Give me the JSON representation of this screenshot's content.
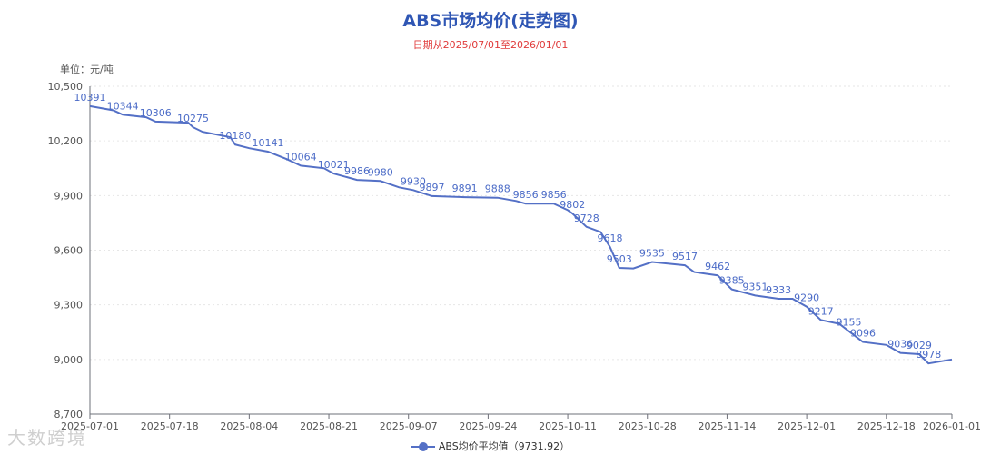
{
  "chart_data": {
    "type": "line",
    "title": "ABS市场均价(走势图)",
    "subtitle": "日期从2025/07/01至2026/01/01",
    "unit_label": "单位：元/吨",
    "y_ticks": [
      "8,700",
      "9,000",
      "9,300",
      "9,600",
      "9,900",
      "10,200",
      "10,500"
    ],
    "x_ticks": [
      "2025-07-01",
      "2025-07-18",
      "2025-08-04",
      "2025-08-21",
      "2025-09-07",
      "2025-09-24",
      "2025-10-11",
      "2025-10-28",
      "2025-11-14",
      "2025-12-01",
      "2025-12-18",
      "2026-01-01"
    ],
    "ylim": [
      8700,
      10500
    ],
    "grid": true,
    "legend_position": "bottom",
    "series": [
      {
        "name": "ABS均价平均值（9731.92）",
        "color": "#5470c6",
        "points": [
          [
            "2025-07-01",
            10391
          ],
          [
            "2025-07-06",
            10368
          ],
          [
            "2025-07-08",
            10344
          ],
          [
            "2025-07-13",
            10330
          ],
          [
            "2025-07-15",
            10306
          ],
          [
            "2025-07-22",
            10300
          ],
          [
            "2025-07-23",
            10275
          ],
          [
            "2025-07-25",
            10250
          ],
          [
            "2025-07-31",
            10220
          ],
          [
            "2025-08-01",
            10180
          ],
          [
            "2025-08-04",
            10160
          ],
          [
            "2025-08-08",
            10141
          ],
          [
            "2025-08-12",
            10100
          ],
          [
            "2025-08-15",
            10064
          ],
          [
            "2025-08-20",
            10050
          ],
          [
            "2025-08-22",
            10021
          ],
          [
            "2025-08-27",
            9986
          ],
          [
            "2025-09-01",
            9980
          ],
          [
            "2025-09-05",
            9945
          ],
          [
            "2025-09-08",
            9930
          ],
          [
            "2025-09-12",
            9897
          ],
          [
            "2025-09-19",
            9891
          ],
          [
            "2025-09-26",
            9888
          ],
          [
            "2025-09-30",
            9870
          ],
          [
            "2025-10-02",
            9856
          ],
          [
            "2025-10-08",
            9856
          ],
          [
            "2025-10-11",
            9820
          ],
          [
            "2025-10-12",
            9802
          ],
          [
            "2025-10-15",
            9728
          ],
          [
            "2025-10-18",
            9700
          ],
          [
            "2025-10-20",
            9618
          ],
          [
            "2025-10-22",
            9503
          ],
          [
            "2025-10-25",
            9500
          ],
          [
            "2025-10-29",
            9535
          ],
          [
            "2025-11-05",
            9517
          ],
          [
            "2025-11-07",
            9480
          ],
          [
            "2025-11-12",
            9462
          ],
          [
            "2025-11-15",
            9385
          ],
          [
            "2025-11-20",
            9351
          ],
          [
            "2025-11-25",
            9333
          ],
          [
            "2025-11-28",
            9333
          ],
          [
            "2025-12-01",
            9290
          ],
          [
            "2025-12-04",
            9217
          ],
          [
            "2025-12-08",
            9195
          ],
          [
            "2025-12-10",
            9155
          ],
          [
            "2025-12-13",
            9096
          ],
          [
            "2025-12-18",
            9080
          ],
          [
            "2025-12-21",
            9036
          ],
          [
            "2025-12-25",
            9029
          ],
          [
            "2025-12-27",
            8978
          ],
          [
            "2026-01-01",
            9000
          ]
        ]
      }
    ],
    "data_labels": [
      [
        "2025-07-01",
        10391
      ],
      [
        "2025-07-08",
        10344
      ],
      [
        "2025-07-15",
        10306
      ],
      [
        "2025-07-23",
        10275
      ],
      [
        "2025-08-01",
        10180
      ],
      [
        "2025-08-08",
        10141
      ],
      [
        "2025-08-15",
        10064
      ],
      [
        "2025-08-22",
        10021
      ],
      [
        "2025-08-27",
        9986
      ],
      [
        "2025-09-01",
        9980
      ],
      [
        "2025-09-08",
        9930
      ],
      [
        "2025-09-12",
        9897
      ],
      [
        "2025-09-19",
        9891
      ],
      [
        "2025-09-26",
        9888
      ],
      [
        "2025-10-02",
        9856
      ],
      [
        "2025-10-08",
        9856
      ],
      [
        "2025-10-12",
        9802
      ],
      [
        "2025-10-15",
        9728
      ],
      [
        "2025-10-20",
        9618
      ],
      [
        "2025-10-22",
        9503
      ],
      [
        "2025-10-29",
        9535
      ],
      [
        "2025-11-05",
        9517
      ],
      [
        "2025-11-12",
        9462
      ],
      [
        "2025-11-15",
        9385
      ],
      [
        "2025-11-20",
        9351
      ],
      [
        "2025-11-25",
        9333
      ],
      [
        "2025-12-01",
        9290
      ],
      [
        "2025-12-04",
        9217
      ],
      [
        "2025-12-10",
        9155
      ],
      [
        "2025-12-13",
        9096
      ],
      [
        "2025-12-21",
        9036
      ],
      [
        "2025-12-25",
        9029
      ],
      [
        "2025-12-27",
        8978
      ]
    ]
  },
  "watermark": "大数跨境"
}
